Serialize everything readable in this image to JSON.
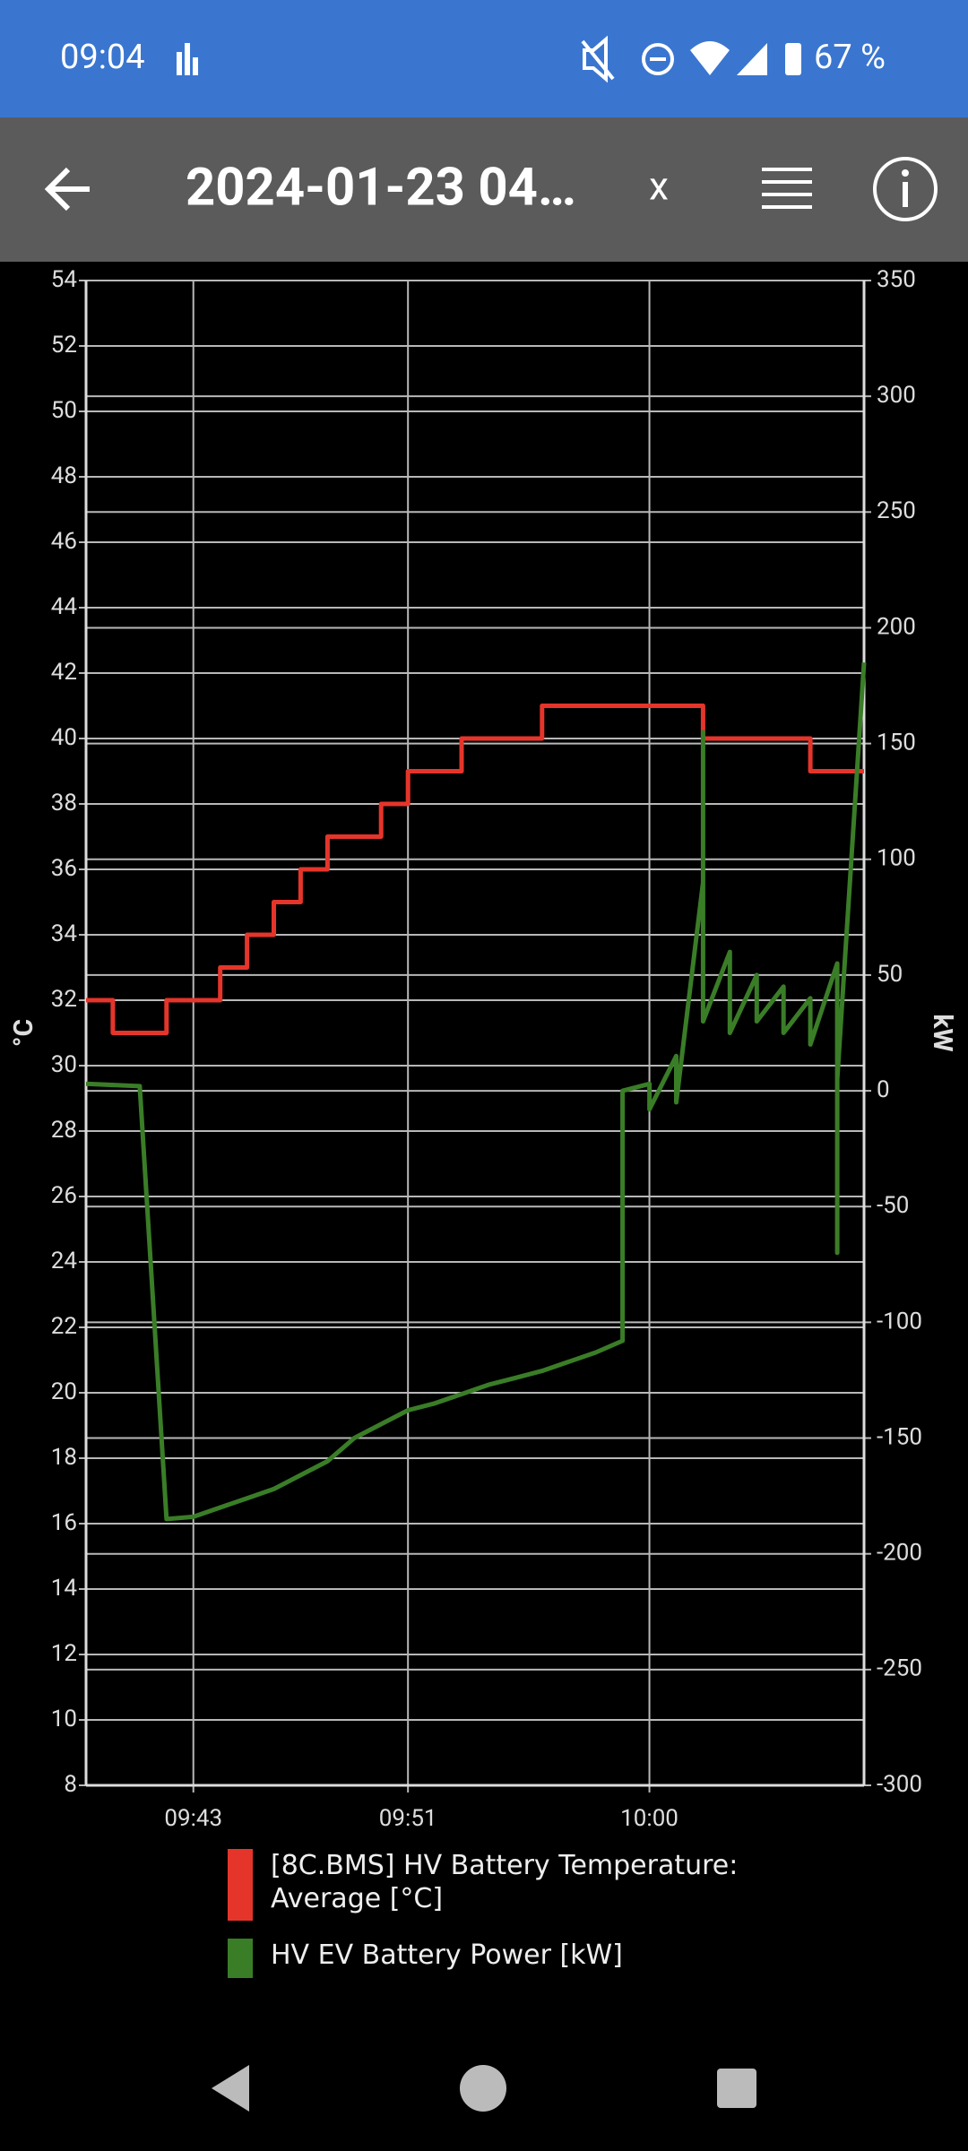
{
  "status_bar": {
    "time": "09:04",
    "battery": "67 %"
  },
  "toolbar": {
    "title": "2024-01-23 04…",
    "close": "x"
  },
  "chart_data": {
    "type": "line",
    "y_label": "°C",
    "y2_label": "kW",
    "xlim": [
      "09:39",
      "10:08"
    ],
    "xticks": [
      "09:43",
      "09:51",
      "10:00"
    ],
    "ylim": [
      8,
      54
    ],
    "yticks": [
      8,
      10,
      12,
      14,
      16,
      18,
      20,
      22,
      24,
      26,
      28,
      30,
      32,
      34,
      36,
      38,
      40,
      42,
      44,
      46,
      48,
      50,
      52,
      54
    ],
    "y2lim": [
      -300,
      350
    ],
    "y2ticks": [
      -300,
      -250,
      -200,
      -150,
      -100,
      -50,
      0,
      50,
      100,
      150,
      200,
      250,
      300,
      350
    ],
    "grid": true,
    "series": [
      {
        "name": "[8C.BMS] HV Battery Temperature: Average [°C]",
        "color": "#e5352b",
        "x": [
          "09:39",
          "09:40",
          "09:40",
          "09:42",
          "09:42",
          "09:44",
          "09:44",
          "09:45",
          "09:45",
          "09:46",
          "09:46",
          "09:47",
          "09:47",
          "09:48",
          "09:48",
          "09:50",
          "09:50",
          "09:51",
          "09:51",
          "09:53",
          "09:53",
          "09:56",
          "09:56",
          "10:02",
          "10:02",
          "10:06",
          "10:06",
          "10:08"
        ],
        "values": [
          32,
          32,
          31,
          31,
          32,
          32,
          33,
          33,
          34,
          34,
          35,
          35,
          36,
          36,
          37,
          37,
          38,
          38,
          39,
          39,
          40,
          40,
          41,
          41,
          40,
          40,
          39,
          39
        ]
      },
      {
        "name": "HV EV Battery Power [kW]",
        "color": "#3a7d27",
        "axis": "y2",
        "x": [
          "09:39",
          "09:41",
          "09:42",
          "09:43",
          "09:44",
          "09:45",
          "09:46",
          "09:47",
          "09:48",
          "09:49",
          "09:50",
          "09:51",
          "09:52",
          "09:53",
          "09:54",
          "09:55",
          "09:56",
          "09:57",
          "09:58",
          "09:59",
          "09:59",
          "10:00",
          "10:00",
          "10:01",
          "10:01",
          "10:02",
          "10:02",
          "10:02",
          "10:02",
          "10:03",
          "10:03",
          "10:04",
          "10:04",
          "10:05",
          "10:05",
          "10:06",
          "10:06",
          "10:07",
          "10:07",
          "10:07",
          "10:08"
        ],
        "values": [
          3,
          2,
          -185,
          -184,
          -180,
          -176,
          -172,
          -166,
          -160,
          -150,
          -144,
          -138,
          -135,
          -131,
          -127,
          -124,
          -121,
          -117,
          -113,
          -108,
          0,
          3,
          -8,
          15,
          -5,
          90,
          40,
          155,
          30,
          60,
          25,
          50,
          30,
          45,
          25,
          40,
          20,
          55,
          -70,
          5,
          185
        ]
      }
    ]
  }
}
